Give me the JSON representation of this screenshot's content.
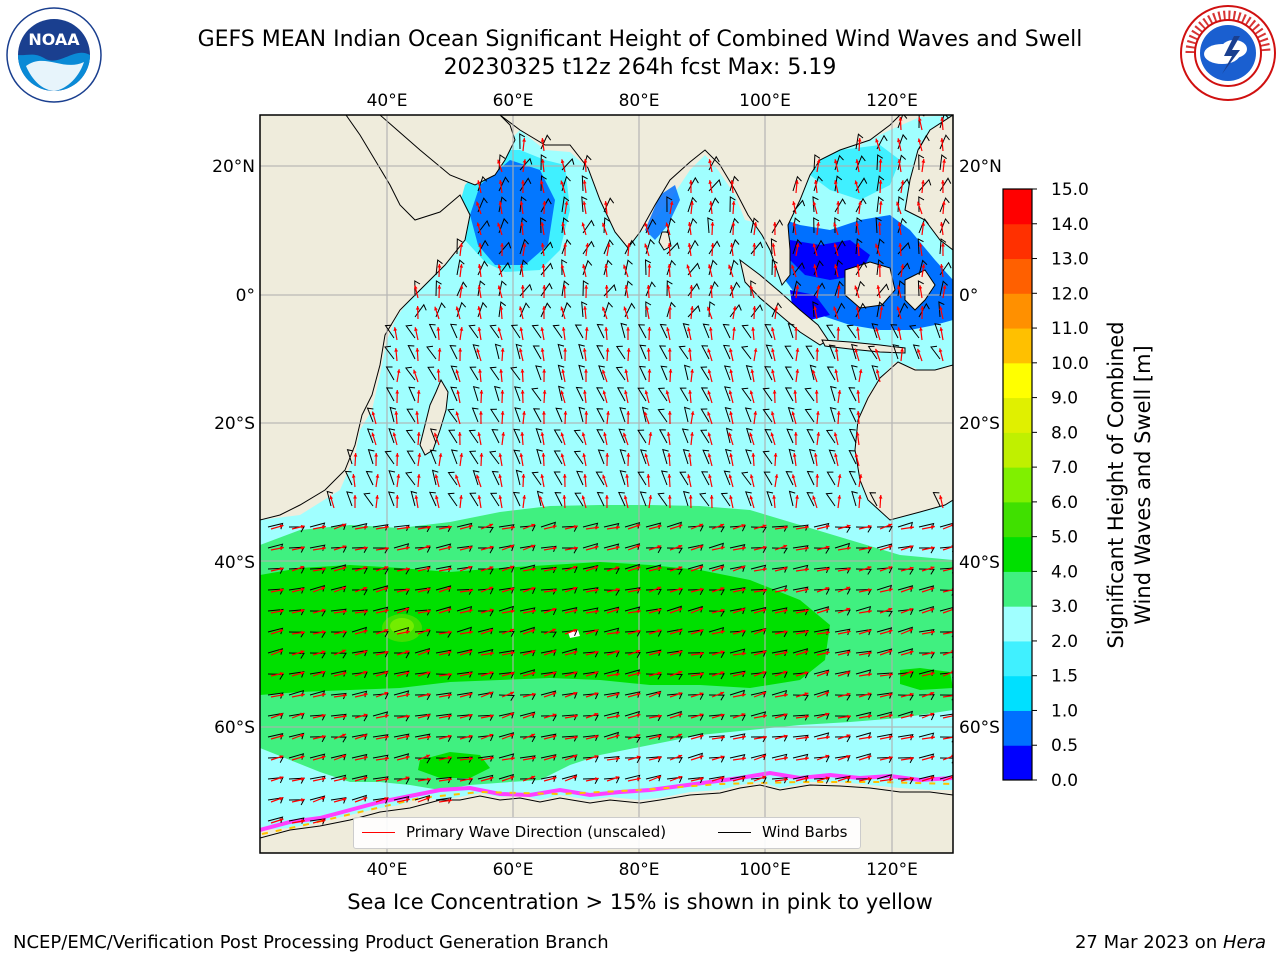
{
  "title": {
    "line1": "GEFS MEAN Indian Ocean Significant Height of Combined Wind Waves and Swell",
    "line2": "20230325 t12z 264h fcst   Max: 5.19"
  },
  "logos": {
    "left": "NOAA",
    "right": "NATIONAL WEATHER SERVICE"
  },
  "map": {
    "lon_ticks": [
      "40°E",
      "60°E",
      "80°E",
      "100°E",
      "120°E"
    ],
    "lat_ticks_left": [
      "20°N",
      "0°",
      "20°S",
      "40°S",
      "60°S"
    ],
    "lat_ticks_right": [
      "20°N",
      "0°",
      "20°S",
      "40°S",
      "60°S"
    ],
    "lon_range": [
      20,
      130
    ],
    "lat_range": [
      -73,
      28
    ],
    "land_color": "#efecdc"
  },
  "colorbar": {
    "title_line1": "Significant Height of Combined",
    "title_line2": "Wind Waves and Swell [m]",
    "levels": [
      "0.0",
      "0.5",
      "1.0",
      "1.5",
      "2.0",
      "3.0",
      "4.0",
      "5.0",
      "6.0",
      "7.0",
      "8.0",
      "9.0",
      "10.0",
      "11.0",
      "12.0",
      "13.0",
      "14.0",
      "15.0"
    ],
    "colors": [
      "#0000ff",
      "#0070ff",
      "#00e0ff",
      "#40f0ff",
      "#a0ffff",
      "#40f080",
      "#00e000",
      "#40e000",
      "#80f000",
      "#c0f000",
      "#e0f000",
      "#ffff00",
      "#ffc000",
      "#ff9000",
      "#ff6000",
      "#ff3000",
      "#ff0000"
    ]
  },
  "legend": {
    "item1": "Primary Wave Direction (unscaled)",
    "item2": "Wind Barbs",
    "item1_color": "#ff0000",
    "item2_color": "#000000"
  },
  "note": "Sea Ice Concentration > 15% is shown in pink to yellow",
  "footer": {
    "left": "NCEP/EMC/Verification Post Processing Product Generation Branch",
    "date": "27 Mar 2023 on ",
    "host": "Hera"
  }
}
